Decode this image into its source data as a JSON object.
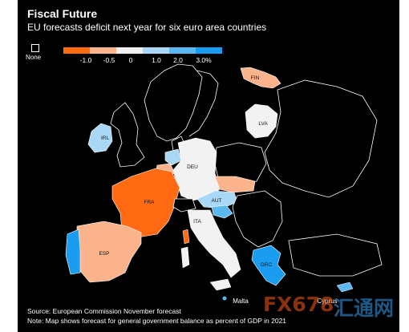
{
  "title": "Fiscal Future",
  "subtitle": "EU forecasts deficit next year for six euro area countries",
  "legend": {
    "none_label": "None",
    "ticks": [
      "-1.0",
      "-0.5",
      "0",
      "1.0",
      "2.0",
      "3.0%"
    ],
    "colors": [
      "#ff6a13",
      "#fbb38c",
      "#f2f2f2",
      "#a9d8f7",
      "#5bb8f0",
      "#1a9df0"
    ]
  },
  "countries": {
    "fin": {
      "label": "FIN",
      "value_range": "-1.0 to -0.5",
      "color": "#fbb38c"
    },
    "lva": {
      "label": "LVA",
      "value_range": "0 to 1.0",
      "color": "#f2f2f2"
    },
    "irl": {
      "label": "IRL",
      "value_range": "1.0 to 2.0",
      "color": "#a9d8f7"
    },
    "deu": {
      "label": "DEU",
      "value_range": "0 to 1.0",
      "color": "#f2f2f2"
    },
    "fra": {
      "label": "FRA",
      "value_range": "below -1.0",
      "color": "#ff6a13"
    },
    "aut": {
      "label": "AUT",
      "value_range": "1.0 to 2.0",
      "color": "#a9d8f7"
    },
    "ita": {
      "label": "ITA",
      "value_range": "0 to 1.0",
      "color": "#f2f2f2"
    },
    "esp": {
      "label": "ESP",
      "value_range": "-1.0 to -0.5",
      "color": "#fbb38c"
    },
    "grc": {
      "label": "GRC",
      "value_range": "above 3.0",
      "color": "#1a9df0"
    },
    "mlt": {
      "label": "Malta"
    },
    "cyp": {
      "label": "Cyprus"
    }
  },
  "footnotes": {
    "source": "Source: European Commission November forecast",
    "note": "Note: Map shows forecast for general government balance as percent of GDP in 2021"
  },
  "watermark": {
    "fx_text": "FX678",
    "cn_text": "汇通网"
  }
}
